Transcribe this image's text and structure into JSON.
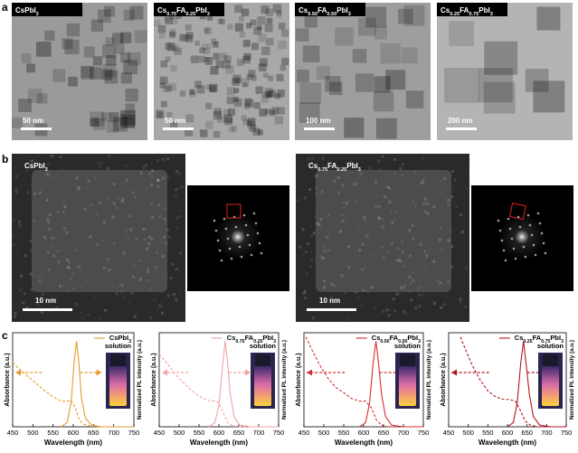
{
  "panel_a": {
    "label": "a",
    "images": [
      {
        "label": [
          "CsPbI",
          "3"
        ],
        "scale": "50 nm"
      },
      {
        "label": [
          "Cs",
          "0.75",
          "FA",
          "0.25",
          "PbI",
          "3"
        ],
        "scale": "50 nm"
      },
      {
        "label": [
          "Cs",
          "0.50",
          "FA",
          "0.50",
          "PbI",
          "3"
        ],
        "scale": "100 nm"
      },
      {
        "label": [
          "Cs",
          "0.25",
          "FA",
          "0.75",
          "PbI",
          "3"
        ],
        "scale": "200 nm"
      }
    ]
  },
  "panel_b": {
    "label": "b",
    "images": [
      {
        "label": [
          "CsPbI",
          "3"
        ],
        "scale": "10 nm"
      },
      {
        "label": [
          "Cs",
          "0.75",
          "FA",
          "0.25",
          "PbI",
          "3"
        ],
        "scale": "10 nm"
      }
    ]
  },
  "panel_c": {
    "label": "c"
  },
  "chart_data": [
    {
      "type": "line",
      "legend": [
        "CsPbI",
        "3"
      ],
      "legend_suffix": "solution",
      "xlabel": "Wavelength (nm)",
      "ylabel": "Absorbance (a.u.)",
      "y2label": "Normalized PL intensity (a.u.)",
      "xlim": [
        450,
        750
      ],
      "xticks": [
        450,
        500,
        550,
        600,
        650,
        700,
        750
      ],
      "ylim": [
        0,
        1.1
      ],
      "y2lim": [
        0,
        1.1
      ],
      "series": [
        {
          "color": "#e59a2e",
          "style": "dashed",
          "x": [
            450,
            470,
            490,
            510,
            530,
            550,
            570,
            585,
            595,
            605,
            615,
            625,
            640,
            660,
            700,
            750
          ],
          "values": [
            0.75,
            0.66,
            0.58,
            0.5,
            0.42,
            0.35,
            0.3,
            0.3,
            0.31,
            0.22,
            0.08,
            0.03,
            0.01,
            0,
            0,
            0
          ]
        },
        {
          "color": "#e59a2e",
          "style": "solid",
          "axis": "y2",
          "x": [
            570,
            585,
            595,
            602,
            608,
            614,
            620,
            630,
            645,
            670,
            750
          ],
          "values": [
            0,
            0.05,
            0.3,
            0.75,
            1,
            0.75,
            0.35,
            0.1,
            0.02,
            0,
            0
          ]
        }
      ]
    },
    {
      "type": "line",
      "legend": [
        "Cs",
        "0.75",
        "FA",
        "0.25",
        "PbI",
        "3"
      ],
      "legend_suffix": "solution",
      "xlabel": "Wavelength (nm)",
      "ylabel": "Absorbance (a.u.)",
      "y2label": "Normalized PL intensity (a.u.)",
      "xlim": [
        450,
        750
      ],
      "xticks": [
        450,
        500,
        550,
        600,
        650,
        700,
        750
      ],
      "ylim": [
        0,
        1.1
      ],
      "y2lim": [
        0,
        1.1
      ],
      "series": [
        {
          "color": "#f0a3a3",
          "style": "dashed",
          "x": [
            450,
            470,
            490,
            510,
            530,
            550,
            570,
            590,
            600,
            612,
            622,
            635,
            650,
            680,
            750
          ],
          "values": [
            0.85,
            0.74,
            0.62,
            0.52,
            0.43,
            0.36,
            0.31,
            0.3,
            0.28,
            0.15,
            0.05,
            0.01,
            0,
            0,
            0
          ]
        },
        {
          "color": "#f0a3a3",
          "style": "solid",
          "axis": "y2",
          "x": [
            575,
            590,
            600,
            609,
            616,
            622,
            628,
            638,
            652,
            680,
            750
          ],
          "values": [
            0,
            0.05,
            0.25,
            0.7,
            1,
            0.75,
            0.4,
            0.12,
            0.02,
            0,
            0
          ]
        }
      ]
    },
    {
      "type": "line",
      "legend": [
        "Cs",
        "0.50",
        "FA",
        "0.50",
        "PbI",
        "3"
      ],
      "legend_suffix": "solution",
      "xlabel": "Wavelength (nm)",
      "ylabel": "Absorbance (a.u.)",
      "y2label": "Normalized PL intensity (a.u.)",
      "xlim": [
        450,
        750
      ],
      "xticks": [
        450,
        500,
        550,
        600,
        650,
        700,
        750
      ],
      "ylim": [
        0,
        1.1
      ],
      "y2lim": [
        0,
        1.1
      ],
      "series": [
        {
          "color": "#d42f2f",
          "style": "dashed",
          "x": [
            455,
            470,
            490,
            510,
            530,
            550,
            570,
            590,
            605,
            620,
            632,
            645,
            660,
            690,
            750
          ],
          "values": [
            1.05,
            0.9,
            0.72,
            0.57,
            0.46,
            0.4,
            0.33,
            0.3,
            0.3,
            0.22,
            0.08,
            0.02,
            0,
            0,
            0
          ]
        },
        {
          "color": "#d42f2f",
          "style": "solid",
          "axis": "y2",
          "x": [
            590,
            605,
            615,
            624,
            631,
            638,
            645,
            655,
            670,
            700,
            750
          ],
          "values": [
            0,
            0.05,
            0.28,
            0.75,
            1,
            0.72,
            0.38,
            0.12,
            0.02,
            0,
            0
          ]
        }
      ]
    },
    {
      "type": "line",
      "legend": [
        "Cs",
        "0.25",
        "FA",
        "0.75",
        "PbI",
        "3"
      ],
      "legend_suffix": "solution",
      "xlabel": "Wavelength (nm)",
      "ylabel": "Absorbance (a.u.)",
      "y2label": "Normalized PL intensity (a.u.)",
      "xlim": [
        450,
        750
      ],
      "xticks": [
        450,
        500,
        550,
        600,
        650,
        700,
        750
      ],
      "ylim": [
        0,
        1.1
      ],
      "y2lim": [
        0,
        1.1
      ],
      "series": [
        {
          "color": "#b3161f",
          "style": "dashed",
          "x": [
            480,
            495,
            510,
            530,
            550,
            570,
            590,
            605,
            620,
            632,
            645,
            658,
            675,
            700,
            750
          ],
          "values": [
            1.05,
            0.88,
            0.72,
            0.55,
            0.42,
            0.35,
            0.32,
            0.32,
            0.3,
            0.2,
            0.07,
            0.02,
            0,
            0,
            0
          ]
        },
        {
          "color": "#b3161f",
          "style": "solid",
          "axis": "y2",
          "x": [
            600,
            615,
            625,
            634,
            641,
            648,
            656,
            666,
            682,
            710,
            750
          ],
          "values": [
            0,
            0.05,
            0.28,
            0.75,
            1,
            0.72,
            0.38,
            0.12,
            0.02,
            0,
            0
          ]
        }
      ]
    }
  ]
}
